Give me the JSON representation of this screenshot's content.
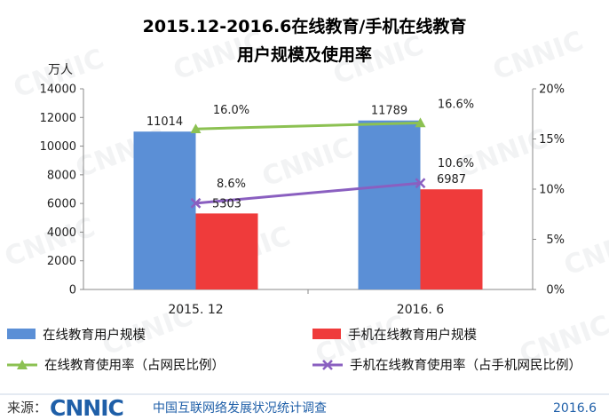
{
  "chart_data": {
    "type": "bar",
    "title_lines": [
      "2015.12-2016.6在线教育/手机在线教育",
      "用户规模及使用率"
    ],
    "left_axis": {
      "unit": "万人",
      "ylim": [
        0,
        14000
      ],
      "ticks": [
        "0",
        "2000",
        "4000",
        "6000",
        "8000",
        "10000",
        "12000",
        "14000"
      ],
      "tick_values": [
        0,
        2000,
        4000,
        6000,
        8000,
        10000,
        12000,
        14000
      ]
    },
    "right_axis": {
      "ylim": [
        0,
        20
      ],
      "ticks": [
        "0%",
        "5%",
        "10%",
        "15%",
        "20%"
      ],
      "tick_values": [
        0,
        5,
        10,
        15,
        20
      ]
    },
    "categories": [
      "2015. 12",
      "2016. 6"
    ],
    "bar_series": [
      {
        "name": "在线教育用户规模",
        "values": [
          11014,
          11789
        ],
        "labels": [
          "11014",
          "11789"
        ],
        "color": "#5b8fd6"
      },
      {
        "name": "手机在线教育用户规模",
        "values": [
          5303,
          6987
        ],
        "labels": [
          "5303",
          "6987"
        ],
        "color": "#ef3b3b"
      }
    ],
    "line_series": [
      {
        "name": "在线教育使用率（占网民比例）",
        "values": [
          16.0,
          16.6
        ],
        "labels": [
          "16.0%",
          "16.6%"
        ],
        "color": "#8cc152",
        "marker": "triangle"
      },
      {
        "name": "手机在线教育使用率（占手机网民比例）",
        "values": [
          8.6,
          10.6
        ],
        "labels": [
          "8.6%",
          "10.6%"
        ],
        "color": "#8a5fc0",
        "marker": "x"
      }
    ],
    "grid": false,
    "legend_position": "bottom"
  },
  "footer": {
    "source_label": "来源：",
    "logo_text": "CNNIC",
    "org_name": "中国互联网络发展状况统计调查",
    "date": "2016.6"
  },
  "watermark_text": "CNNIC"
}
